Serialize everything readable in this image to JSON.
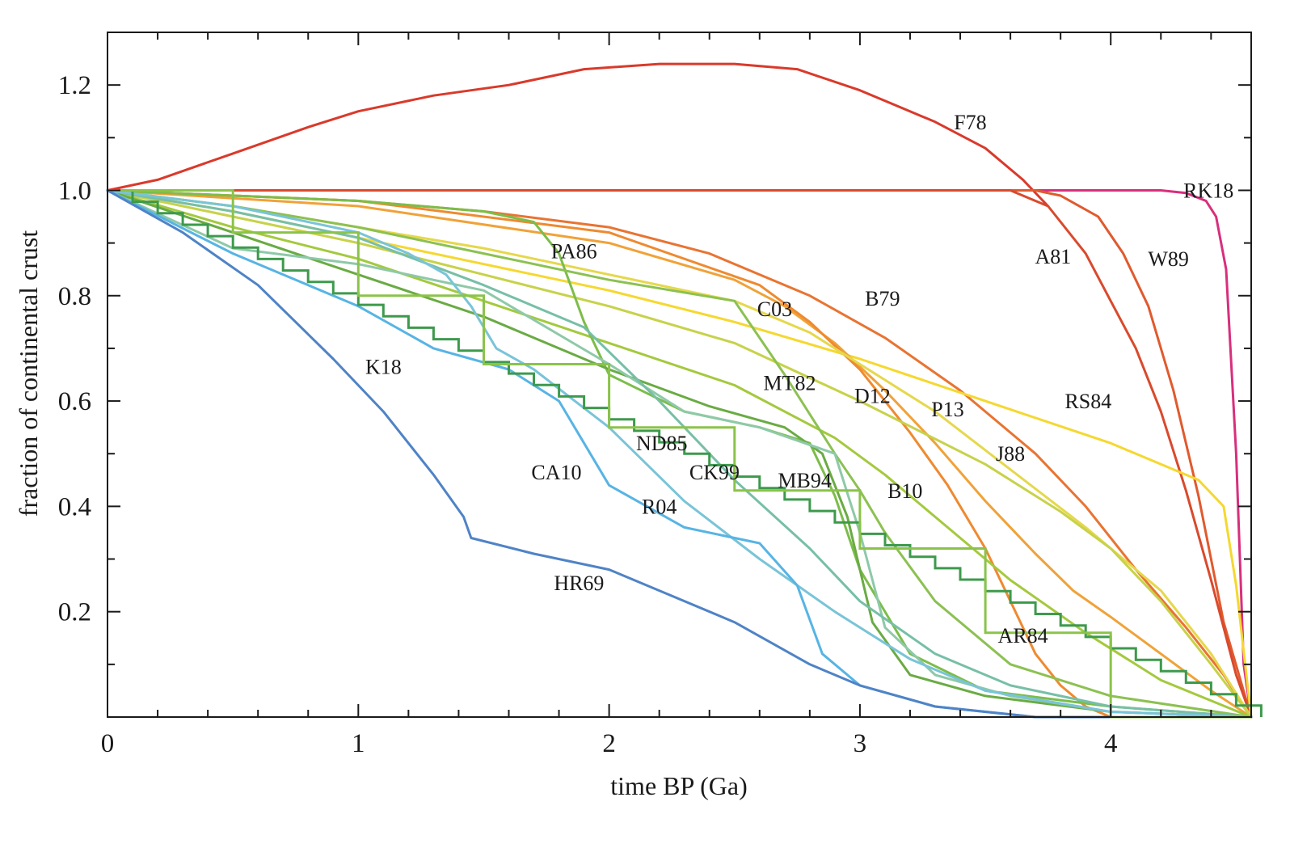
{
  "chart_data": {
    "type": "line",
    "title": "",
    "xlabel": "time BP (Ga)",
    "ylabel": "fraction of continental crust",
    "xlim": [
      0,
      4.56
    ],
    "ylim": [
      0.0,
      1.3
    ],
    "xticks": [
      0,
      1,
      2,
      3,
      4
    ],
    "xtick_labels": [
      "0",
      "1",
      "2",
      "3",
      "4"
    ],
    "yticks": [
      0.2,
      0.4,
      0.6,
      0.8,
      1.0,
      1.2
    ],
    "ytick_labels": [
      "0.2",
      "0.4",
      "0.6",
      "0.8",
      "1.0",
      "1.2"
    ],
    "grid": false,
    "series": [
      {
        "name": "F78",
        "color": "#d93a2b",
        "x": [
          0,
          0.2,
          0.5,
          0.8,
          1.0,
          1.3,
          1.6,
          1.9,
          2.2,
          2.5,
          2.75,
          3.0,
          3.3,
          3.5,
          3.65,
          3.75
        ],
        "y": [
          1.0,
          1.02,
          1.07,
          1.12,
          1.15,
          1.18,
          1.2,
          1.23,
          1.24,
          1.24,
          1.23,
          1.19,
          1.13,
          1.08,
          1.02,
          0.97
        ]
      },
      {
        "name": "RK18",
        "color": "#d82f7c",
        "x": [
          0,
          4.0,
          4.2,
          4.3,
          4.38,
          4.42,
          4.46,
          4.5,
          4.53,
          4.56
        ],
        "y": [
          1.0,
          1.0,
          1.0,
          0.995,
          0.98,
          0.95,
          0.85,
          0.5,
          0.1,
          0.0
        ]
      },
      {
        "name": "W89",
        "color": "#e05a2e",
        "x": [
          0,
          3.7,
          3.8,
          3.95,
          4.05,
          4.15,
          4.25,
          4.35,
          4.45,
          4.56
        ],
        "y": [
          1.0,
          1.0,
          0.99,
          0.95,
          0.88,
          0.78,
          0.62,
          0.42,
          0.18,
          0.0
        ]
      },
      {
        "name": "A81",
        "color": "#d94a2c",
        "x": [
          0,
          3.6,
          3.75,
          3.9,
          4.0,
          4.1,
          4.2,
          4.3,
          4.4,
          4.5,
          4.56
        ],
        "y": [
          1.0,
          1.0,
          0.97,
          0.88,
          0.79,
          0.7,
          0.58,
          0.43,
          0.26,
          0.08,
          0.0
        ]
      },
      {
        "name": "B79",
        "color": "#e87432",
        "x": [
          0,
          0.5,
          1.0,
          1.5,
          2.0,
          2.4,
          2.8,
          3.1,
          3.4,
          3.7,
          3.9,
          4.1,
          4.3,
          4.45,
          4.56
        ],
        "y": [
          1.0,
          0.99,
          0.98,
          0.96,
          0.93,
          0.88,
          0.8,
          0.72,
          0.62,
          0.5,
          0.4,
          0.28,
          0.17,
          0.08,
          0.0
        ]
      },
      {
        "name": "RS84",
        "color": "#f5d830",
        "x": [
          0,
          0.5,
          1.0,
          1.5,
          2.0,
          2.5,
          3.0,
          3.5,
          4.0,
          4.2,
          4.35,
          4.45,
          4.5,
          4.56
        ],
        "y": [
          1.0,
          0.96,
          0.91,
          0.86,
          0.81,
          0.75,
          0.68,
          0.6,
          0.52,
          0.48,
          0.45,
          0.4,
          0.25,
          0.0
        ]
      },
      {
        "name": "P13",
        "color": "#f0a238",
        "x": [
          0,
          1.0,
          2.0,
          2.5,
          2.7,
          2.9,
          3.1,
          3.3,
          3.5,
          3.7,
          3.85,
          4.0,
          4.2,
          4.4,
          4.56
        ],
        "y": [
          1.0,
          0.97,
          0.9,
          0.83,
          0.78,
          0.71,
          0.62,
          0.52,
          0.41,
          0.31,
          0.24,
          0.19,
          0.12,
          0.05,
          0.0
        ]
      },
      {
        "name": "D12",
        "color": "#ee8a30",
        "x": [
          0,
          1.0,
          2.0,
          2.6,
          2.8,
          3.0,
          3.2,
          3.35,
          3.5,
          3.6,
          3.7,
          3.8,
          3.9,
          4.0,
          4.56
        ],
        "y": [
          1.0,
          0.98,
          0.92,
          0.82,
          0.75,
          0.66,
          0.54,
          0.44,
          0.32,
          0.22,
          0.12,
          0.06,
          0.02,
          0.0,
          0.0
        ]
      },
      {
        "name": "C03",
        "color": "#e5d84c",
        "x": [
          0,
          0.5,
          1.0,
          1.5,
          2.0,
          2.5,
          2.8,
          3.0,
          3.3,
          3.6,
          3.9,
          4.2,
          4.4,
          4.56
        ],
        "y": [
          1.0,
          0.97,
          0.93,
          0.89,
          0.84,
          0.79,
          0.73,
          0.67,
          0.58,
          0.47,
          0.36,
          0.24,
          0.12,
          0.0
        ]
      },
      {
        "name": "J88",
        "color": "#c7d24a",
        "x": [
          0,
          0.5,
          1.0,
          1.5,
          2.0,
          2.5,
          3.0,
          3.5,
          3.8,
          4.0,
          4.2,
          4.4,
          4.56
        ],
        "y": [
          1.0,
          0.95,
          0.9,
          0.84,
          0.78,
          0.71,
          0.6,
          0.48,
          0.39,
          0.32,
          0.22,
          0.1,
          0.0
        ]
      },
      {
        "name": "B10",
        "color": "#a4c93e",
        "x": [
          0,
          0.5,
          1.0,
          1.5,
          2.0,
          2.5,
          2.9,
          3.1,
          3.3,
          3.6,
          3.9,
          4.2,
          4.56
        ],
        "y": [
          1.0,
          0.93,
          0.87,
          0.79,
          0.71,
          0.63,
          0.53,
          0.46,
          0.38,
          0.26,
          0.16,
          0.07,
          0.0
        ]
      },
      {
        "name": "PA86",
        "color": "#7cbd4a",
        "x": [
          0,
          0.5,
          1.0,
          1.5,
          1.7,
          1.8,
          1.9,
          2.0,
          2.3,
          2.6,
          2.8,
          2.9,
          3.0,
          3.2,
          3.5,
          4.0,
          4.56
        ],
        "y": [
          1.0,
          0.99,
          0.98,
          0.96,
          0.94,
          0.88,
          0.75,
          0.65,
          0.58,
          0.55,
          0.52,
          0.42,
          0.28,
          0.12,
          0.05,
          0.02,
          0.0
        ]
      },
      {
        "name": "MT82",
        "color": "#8cc152",
        "x": [
          0,
          0.5,
          1.0,
          1.5,
          2.0,
          2.5,
          2.7,
          2.9,
          3.0,
          3.1,
          3.3,
          3.6,
          4.0,
          4.56
        ],
        "y": [
          1.0,
          0.97,
          0.93,
          0.88,
          0.83,
          0.79,
          0.65,
          0.5,
          0.43,
          0.35,
          0.22,
          0.1,
          0.04,
          0.0
        ]
      },
      {
        "name": "MB94",
        "color": "#6aab44",
        "x": [
          0,
          0.5,
          1.0,
          1.5,
          2.0,
          2.4,
          2.7,
          2.85,
          2.95,
          3.05,
          3.2,
          3.5,
          4.0,
          4.56
        ],
        "y": [
          1.0,
          0.92,
          0.84,
          0.76,
          0.66,
          0.59,
          0.55,
          0.5,
          0.38,
          0.18,
          0.08,
          0.04,
          0.01,
          0.0
        ]
      },
      {
        "name": "CK99",
        "color": "#8ec9a8",
        "x": [
          0,
          0.5,
          1.0,
          1.5,
          2.0,
          2.3,
          2.6,
          2.9,
          3.0,
          3.1,
          3.3,
          3.6,
          4.0,
          4.56
        ],
        "y": [
          1.0,
          0.89,
          0.86,
          0.81,
          0.67,
          0.58,
          0.55,
          0.5,
          0.35,
          0.17,
          0.08,
          0.04,
          0.01,
          0.0
        ]
      },
      {
        "name": "ND85",
        "color": "#77bfa7",
        "x": [
          0,
          0.5,
          1.0,
          1.5,
          1.9,
          2.2,
          2.5,
          2.8,
          3.0,
          3.3,
          3.6,
          4.0,
          4.56
        ],
        "y": [
          1.0,
          0.96,
          0.91,
          0.82,
          0.74,
          0.6,
          0.45,
          0.32,
          0.22,
          0.12,
          0.06,
          0.02,
          0.0
        ]
      },
      {
        "name": "R04",
        "color": "#79c4d8",
        "x": [
          0,
          0.5,
          1.0,
          1.2,
          1.35,
          1.45,
          1.55,
          1.7,
          2.0,
          2.3,
          2.6,
          2.9,
          3.2,
          3.5,
          4.0,
          4.56
        ],
        "y": [
          1.0,
          0.97,
          0.92,
          0.88,
          0.84,
          0.78,
          0.7,
          0.66,
          0.55,
          0.41,
          0.3,
          0.2,
          0.11,
          0.05,
          0.01,
          0.0
        ]
      },
      {
        "name": "CA10",
        "color": "#57b4e4",
        "x": [
          0,
          0.5,
          1.0,
          1.3,
          1.6,
          1.8,
          1.9,
          2.0,
          2.3,
          2.6,
          2.75,
          2.85,
          3.0,
          3.3,
          3.7,
          4.56
        ],
        "y": [
          1.0,
          0.88,
          0.78,
          0.7,
          0.66,
          0.6,
          0.52,
          0.44,
          0.36,
          0.33,
          0.25,
          0.12,
          0.06,
          0.02,
          0.0,
          0.0
        ]
      },
      {
        "name": "HR69",
        "color": "#4f83c6",
        "x": [
          0,
          0.3,
          0.6,
          0.9,
          1.1,
          1.3,
          1.42,
          1.45,
          1.7,
          2.0,
          2.2,
          2.5,
          2.8,
          3.0,
          3.3,
          3.7,
          4.56
        ],
        "y": [
          1.0,
          0.92,
          0.82,
          0.68,
          0.58,
          0.46,
          0.38,
          0.34,
          0.31,
          0.28,
          0.24,
          0.18,
          0.1,
          0.06,
          0.02,
          0.0,
          0.0
        ]
      }
    ],
    "step_series": [
      {
        "name": "K18",
        "color": "#3d9a4c",
        "step": 0.1,
        "x": [
          0,
          4.56
        ],
        "y": [
          1.0,
          0.0
        ]
      },
      {
        "name": "AR84",
        "color": "#8bc34a",
        "x": [
          0,
          0.5,
          0.5,
          1.0,
          1.0,
          1.5,
          1.5,
          2.0,
          2.0,
          2.5,
          2.5,
          3.0,
          3.0,
          3.5,
          3.5,
          4.0,
          4.0,
          4.56
        ],
        "y": [
          1.0,
          1.0,
          0.92,
          0.92,
          0.8,
          0.8,
          0.67,
          0.67,
          0.55,
          0.55,
          0.43,
          0.43,
          0.32,
          0.32,
          0.16,
          0.16,
          0.0,
          0.0
        ]
      }
    ],
    "labels": [
      {
        "text": "F78",
        "series": "F78",
        "x": 3.44,
        "y": 1.13
      },
      {
        "text": "RK18",
        "series": "RK18",
        "x": 4.39,
        "y": 1.0
      },
      {
        "text": "A81",
        "series": "A81",
        "x": 3.77,
        "y": 0.875
      },
      {
        "text": "W89",
        "series": "W89",
        "x": 4.23,
        "y": 0.87
      },
      {
        "text": "B79",
        "series": "B79",
        "x": 3.09,
        "y": 0.795
      },
      {
        "text": "C03",
        "series": "C03",
        "x": 2.66,
        "y": 0.775
      },
      {
        "text": "PA86",
        "series": "PA86",
        "x": 1.86,
        "y": 0.885
      },
      {
        "text": "MT82",
        "series": "MT82",
        "x": 2.72,
        "y": 0.635
      },
      {
        "text": "D12",
        "series": "D12",
        "x": 3.05,
        "y": 0.61
      },
      {
        "text": "P13",
        "series": "P13",
        "x": 3.35,
        "y": 0.585
      },
      {
        "text": "RS84",
        "series": "RS84",
        "x": 3.91,
        "y": 0.6
      },
      {
        "text": "K18",
        "series": "K18",
        "x": 1.1,
        "y": 0.665
      },
      {
        "text": "J88",
        "series": "J88",
        "x": 3.6,
        "y": 0.5
      },
      {
        "text": "ND85",
        "series": "ND85",
        "x": 2.21,
        "y": 0.52
      },
      {
        "text": "CA10",
        "series": "CA10",
        "x": 1.79,
        "y": 0.465
      },
      {
        "text": "CK99",
        "series": "CK99",
        "x": 2.42,
        "y": 0.465
      },
      {
        "text": "MB94",
        "series": "MB94",
        "x": 2.78,
        "y": 0.45
      },
      {
        "text": "B10",
        "series": "B10",
        "x": 3.18,
        "y": 0.43
      },
      {
        "text": "R04",
        "series": "R04",
        "x": 2.2,
        "y": 0.4
      },
      {
        "text": "HR69",
        "series": "HR69",
        "x": 1.88,
        "y": 0.255
      },
      {
        "text": "AR84",
        "series": "AR84",
        "x": 3.65,
        "y": 0.155
      }
    ]
  }
}
